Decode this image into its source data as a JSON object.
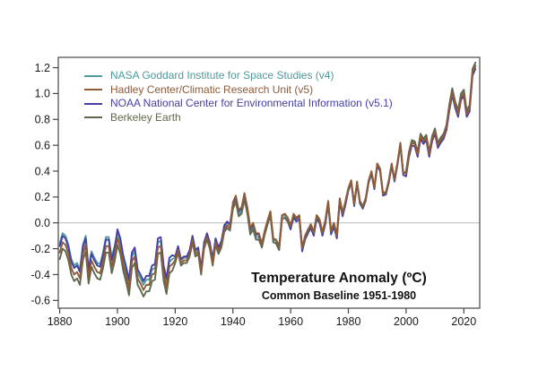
{
  "colors": {
    "background": "#ffffff",
    "frame": "#454545",
    "tick_label": "#1a1a1a",
    "zero_line": "#c6c6c6"
  },
  "chart_data": {
    "type": "line",
    "title": "Temperature Anomaly (ºC)",
    "subtitle": "Common Baseline 1951-1980",
    "x_start": 1880,
    "x_end": 2024,
    "xlim": [
      1879.5,
      2025.5
    ],
    "ylim": [
      -0.66,
      1.28
    ],
    "x_ticks": [
      1880,
      1900,
      1920,
      1940,
      1960,
      1980,
      2000,
      2020
    ],
    "y_ticks": [
      -0.6,
      -0.4,
      -0.2,
      0.0,
      0.2,
      0.4,
      0.6,
      0.8,
      1.0,
      1.2
    ],
    "zero_line": 0.0,
    "grid": "zero-line-only",
    "legend_position": "top-left",
    "draw_order": [
      "nasa-giss",
      "noaa-ncei",
      "berkeley-earth",
      "hadley-cru"
    ],
    "series": [
      {
        "name": "nasa-giss",
        "label": "NASA Goddard Institute for Space Studies (v4)",
        "color": "#4e9a9c",
        "values": [
          -0.16,
          -0.08,
          -0.1,
          -0.17,
          -0.28,
          -0.33,
          -0.31,
          -0.36,
          -0.17,
          -0.1,
          -0.35,
          -0.22,
          -0.27,
          -0.31,
          -0.32,
          -0.23,
          -0.11,
          -0.11,
          -0.27,
          -0.18,
          -0.08,
          -0.15,
          -0.28,
          -0.37,
          -0.47,
          -0.26,
          -0.22,
          -0.39,
          -0.43,
          -0.48,
          -0.44,
          -0.44,
          -0.36,
          -0.35,
          -0.15,
          -0.14,
          -0.36,
          -0.46,
          -0.3,
          -0.28,
          -0.27,
          -0.19,
          -0.29,
          -0.27,
          -0.27,
          -0.22,
          -0.11,
          -0.22,
          -0.2,
          -0.36,
          -0.16,
          -0.09,
          -0.16,
          -0.29,
          -0.13,
          -0.2,
          -0.15,
          -0.03,
          0.0,
          -0.02,
          0.13,
          0.18,
          0.07,
          0.09,
          0.2,
          0.09,
          -0.07,
          -0.03,
          -0.11,
          -0.11,
          -0.17,
          -0.07,
          0.01,
          0.08,
          -0.13,
          -0.14,
          -0.19,
          0.05,
          0.06,
          0.03,
          -0.03,
          0.06,
          0.03,
          0.05,
          -0.2,
          -0.11,
          -0.06,
          -0.02,
          -0.08,
          0.05,
          0.02,
          -0.08,
          0.01,
          0.16,
          -0.07,
          -0.01,
          -0.1,
          0.18,
          0.07,
          0.16,
          0.26,
          0.32,
          0.14,
          0.31,
          0.16,
          0.12,
          0.18,
          0.32,
          0.39,
          0.27,
          0.45,
          0.41,
          0.22,
          0.23,
          0.32,
          0.45,
          0.33,
          0.46,
          0.61,
          0.38,
          0.39,
          0.54,
          0.63,
          0.62,
          0.54,
          0.68,
          0.64,
          0.67,
          0.54,
          0.66,
          0.72,
          0.61,
          0.65,
          0.68,
          0.75,
          0.9,
          1.02,
          0.92,
          0.85,
          0.98,
          1.01,
          0.85,
          0.89,
          1.17,
          1.22
        ]
      },
      {
        "name": "hadley-cru",
        "label": "Hadley Center/Climatic Research Unit (v5)",
        "color": "#8f5b39",
        "values": [
          -0.23,
          -0.15,
          -0.17,
          -0.24,
          -0.35,
          -0.4,
          -0.38,
          -0.43,
          -0.24,
          -0.17,
          -0.42,
          -0.29,
          -0.34,
          -0.38,
          -0.39,
          -0.3,
          -0.18,
          -0.18,
          -0.34,
          -0.25,
          -0.12,
          -0.19,
          -0.32,
          -0.41,
          -0.51,
          -0.3,
          -0.26,
          -0.43,
          -0.47,
          -0.52,
          -0.48,
          -0.48,
          -0.4,
          -0.39,
          -0.19,
          -0.18,
          -0.4,
          -0.5,
          -0.34,
          -0.32,
          -0.29,
          -0.21,
          -0.31,
          -0.29,
          -0.29,
          -0.24,
          -0.13,
          -0.24,
          -0.22,
          -0.38,
          -0.18,
          -0.11,
          -0.18,
          -0.31,
          -0.15,
          -0.22,
          -0.17,
          -0.05,
          -0.02,
          -0.04,
          0.16,
          0.21,
          0.1,
          0.12,
          0.23,
          0.12,
          -0.04,
          0.0,
          -0.08,
          -0.08,
          -0.16,
          -0.06,
          0.02,
          0.09,
          -0.12,
          -0.13,
          -0.18,
          0.06,
          0.07,
          0.04,
          -0.02,
          0.07,
          0.04,
          0.06,
          -0.19,
          -0.1,
          -0.05,
          -0.01,
          -0.07,
          0.06,
          0.03,
          -0.07,
          0.02,
          0.17,
          -0.06,
          0.0,
          -0.09,
          0.19,
          0.08,
          0.17,
          0.27,
          0.33,
          0.15,
          0.32,
          0.17,
          0.13,
          0.19,
          0.33,
          0.4,
          0.28,
          0.46,
          0.42,
          0.23,
          0.24,
          0.33,
          0.46,
          0.34,
          0.47,
          0.62,
          0.39,
          0.38,
          0.53,
          0.62,
          0.61,
          0.53,
          0.67,
          0.63,
          0.66,
          0.53,
          0.65,
          0.71,
          0.6,
          0.64,
          0.67,
          0.74,
          0.89,
          1.01,
          0.91,
          0.84,
          0.97,
          1.0,
          0.84,
          0.88,
          1.16,
          1.21
        ]
      },
      {
        "name": "noaa-ncei",
        "label": "NOAA National Center for Environmental Information (v5.1)",
        "color": "#443fa6",
        "values": [
          -0.18,
          -0.1,
          -0.12,
          -0.19,
          -0.3,
          -0.35,
          -0.33,
          -0.38,
          -0.19,
          -0.12,
          -0.37,
          -0.24,
          -0.29,
          -0.33,
          -0.34,
          -0.25,
          -0.13,
          -0.13,
          -0.29,
          -0.2,
          -0.05,
          -0.12,
          -0.25,
          -0.34,
          -0.44,
          -0.23,
          -0.19,
          -0.36,
          -0.4,
          -0.45,
          -0.41,
          -0.41,
          -0.33,
          -0.32,
          -0.12,
          -0.11,
          -0.33,
          -0.43,
          -0.27,
          -0.25,
          -0.26,
          -0.18,
          -0.28,
          -0.26,
          -0.26,
          -0.21,
          -0.1,
          -0.21,
          -0.19,
          -0.35,
          -0.15,
          -0.08,
          -0.15,
          -0.28,
          -0.12,
          -0.19,
          -0.14,
          -0.02,
          0.01,
          -0.01,
          0.15,
          0.2,
          0.09,
          0.11,
          0.22,
          0.11,
          -0.05,
          -0.01,
          -0.09,
          -0.09,
          -0.19,
          -0.09,
          -0.01,
          0.06,
          -0.15,
          -0.16,
          -0.21,
          0.03,
          0.04,
          0.01,
          -0.05,
          0.04,
          0.01,
          0.03,
          -0.22,
          -0.13,
          -0.08,
          -0.04,
          -0.1,
          0.03,
          0.0,
          -0.1,
          -0.01,
          0.14,
          -0.09,
          -0.03,
          -0.12,
          0.16,
          0.05,
          0.14,
          0.25,
          0.31,
          0.13,
          0.3,
          0.15,
          0.11,
          0.17,
          0.31,
          0.38,
          0.26,
          0.44,
          0.4,
          0.21,
          0.22,
          0.31,
          0.44,
          0.32,
          0.45,
          0.6,
          0.37,
          0.36,
          0.51,
          0.6,
          0.59,
          0.51,
          0.65,
          0.61,
          0.64,
          0.51,
          0.63,
          0.69,
          0.58,
          0.62,
          0.65,
          0.72,
          0.87,
          0.99,
          0.89,
          0.82,
          0.95,
          0.98,
          0.82,
          0.86,
          1.14,
          1.19
        ]
      },
      {
        "name": "berkeley-earth",
        "label": "Berkeley Earth",
        "color": "#5d6a4d",
        "values": [
          -0.28,
          -0.2,
          -0.22,
          -0.29,
          -0.4,
          -0.45,
          -0.43,
          -0.48,
          -0.29,
          -0.22,
          -0.47,
          -0.34,
          -0.39,
          -0.43,
          -0.44,
          -0.35,
          -0.23,
          -0.23,
          -0.39,
          -0.3,
          -0.17,
          -0.24,
          -0.37,
          -0.46,
          -0.56,
          -0.35,
          -0.31,
          -0.48,
          -0.52,
          -0.57,
          -0.53,
          -0.53,
          -0.45,
          -0.44,
          -0.24,
          -0.23,
          -0.45,
          -0.55,
          -0.39,
          -0.37,
          -0.31,
          -0.23,
          -0.33,
          -0.31,
          -0.31,
          -0.26,
          -0.15,
          -0.26,
          -0.24,
          -0.4,
          -0.2,
          -0.13,
          -0.2,
          -0.33,
          -0.17,
          -0.24,
          -0.19,
          -0.07,
          -0.04,
          -0.06,
          0.11,
          0.16,
          0.05,
          0.07,
          0.18,
          0.07,
          -0.09,
          -0.05,
          -0.13,
          -0.13,
          -0.19,
          -0.09,
          -0.01,
          0.06,
          -0.15,
          -0.16,
          -0.21,
          0.03,
          0.04,
          0.01,
          -0.03,
          0.06,
          0.03,
          0.05,
          -0.2,
          -0.11,
          -0.06,
          -0.02,
          -0.08,
          0.05,
          0.02,
          -0.08,
          0.01,
          0.16,
          -0.07,
          -0.01,
          -0.1,
          0.18,
          0.07,
          0.16,
          0.26,
          0.32,
          0.14,
          0.31,
          0.16,
          0.12,
          0.18,
          0.32,
          0.39,
          0.27,
          0.45,
          0.41,
          0.22,
          0.23,
          0.32,
          0.45,
          0.33,
          0.46,
          0.61,
          0.38,
          0.4,
          0.55,
          0.64,
          0.63,
          0.55,
          0.69,
          0.65,
          0.68,
          0.55,
          0.67,
          0.73,
          0.62,
          0.66,
          0.69,
          0.76,
          0.92,
          1.04,
          0.94,
          0.87,
          1.0,
          1.03,
          0.87,
          0.91,
          1.19,
          1.24
        ]
      }
    ]
  }
}
